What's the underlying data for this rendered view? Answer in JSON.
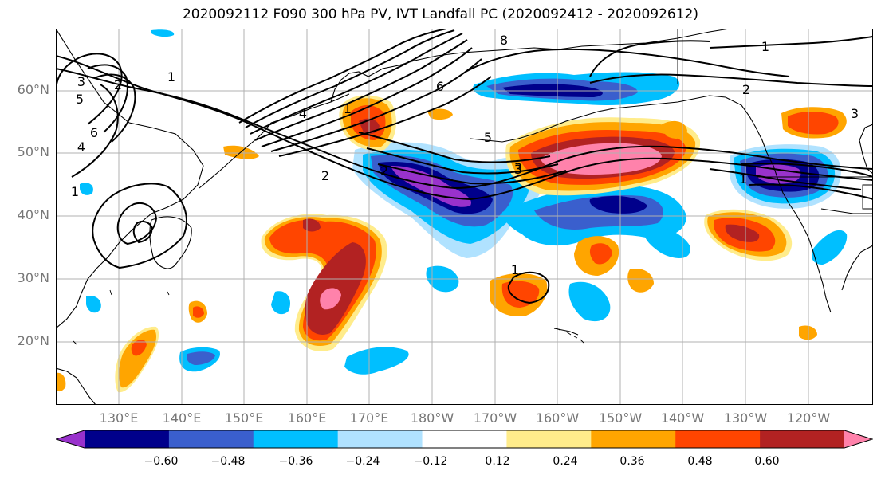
{
  "title": "2020092112 F090 300 hPa PV, IVT Landfall PC (2020092412 - 2020092612)",
  "lat_labels": [
    "60°N",
    "50°N",
    "40°N",
    "30°N",
    "20°N"
  ],
  "lon_labels": [
    "130°E",
    "140°E",
    "150°E",
    "160°E",
    "170°E",
    "180°W",
    "170°W",
    "160°W",
    "150°W",
    "140°W",
    "130°W",
    "120°W"
  ],
  "colorbar": {
    "ticks": [
      "−0.60",
      "−0.48",
      "−0.36",
      "−0.24",
      "−0.12",
      "0.12",
      "0.24",
      "0.36",
      "0.48",
      "0.60"
    ],
    "colors": [
      "#9932cc",
      "#00008b",
      "#3a5fcd",
      "#00bfff",
      "#b0e2ff",
      "#ffffff",
      "#ffec8b",
      "#ffa500",
      "#ff4500",
      "#b22222",
      "#ff82ab"
    ]
  },
  "contour_labels": [
    "1",
    "2",
    "3",
    "4",
    "5",
    "6",
    "8",
    "1",
    "2",
    "3",
    "4",
    "5",
    "6",
    "1",
    "1",
    "2",
    "3",
    "1",
    "2",
    "3",
    "1",
    "1"
  ]
}
